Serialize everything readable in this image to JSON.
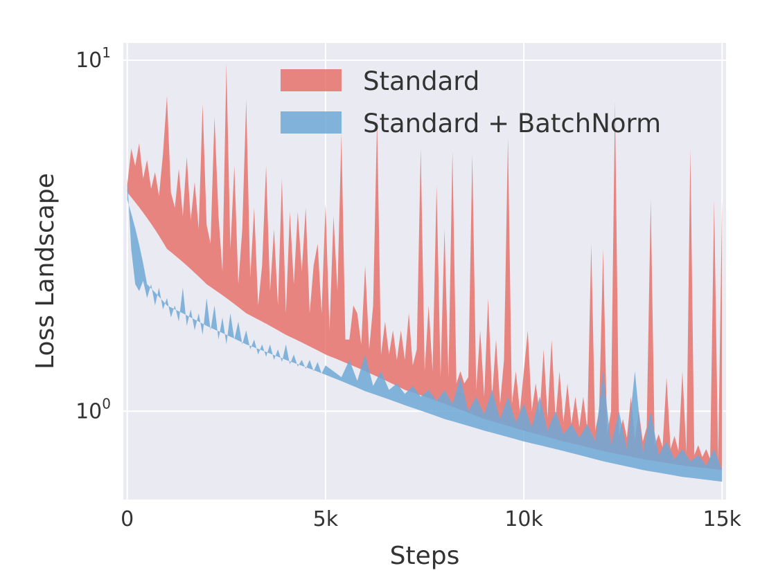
{
  "chart_data": {
    "type": "area",
    "title": "",
    "xlabel": "Steps",
    "ylabel": "Loss Landscape",
    "y_scale": "log",
    "xlim": [
      -100,
      15100
    ],
    "ylim": [
      0.56,
      11.2
    ],
    "x_ticks": [
      {
        "value": 0,
        "label": "0"
      },
      {
        "value": 5000,
        "label": "5k"
      },
      {
        "value": 10000,
        "label": "10k"
      },
      {
        "value": 15000,
        "label": "15k"
      }
    ],
    "y_ticks": [
      {
        "value": 1,
        "base": "10",
        "exp": "0"
      },
      {
        "value": 10,
        "base": "10",
        "exp": "1"
      }
    ],
    "grid": true,
    "legend_position": "top-right",
    "series": [
      {
        "name": "Standard",
        "color": "#e8726b",
        "opacity": 0.85,
        "upper": [
          [
            0,
            4.4
          ],
          [
            100,
            5.6
          ],
          [
            200,
            5.0
          ],
          [
            300,
            5.8
          ],
          [
            400,
            4.6
          ],
          [
            500,
            5.2
          ],
          [
            600,
            4.3
          ],
          [
            700,
            4.8
          ],
          [
            800,
            4.1
          ],
          [
            900,
            5.4
          ],
          [
            1000,
            7.9
          ],
          [
            1100,
            4.2
          ],
          [
            1200,
            3.8
          ],
          [
            1300,
            4.9
          ],
          [
            1400,
            3.6
          ],
          [
            1500,
            5.3
          ],
          [
            1600,
            3.5
          ],
          [
            1700,
            4.5
          ],
          [
            1800,
            3.3
          ],
          [
            1900,
            7.5
          ],
          [
            2000,
            3.4
          ],
          [
            2100,
            3.0
          ],
          [
            2200,
            6.9
          ],
          [
            2300,
            3.6
          ],
          [
            2400,
            2.5
          ],
          [
            2500,
            9.8
          ],
          [
            2600,
            2.9
          ],
          [
            2700,
            5.0
          ],
          [
            2800,
            2.3
          ],
          [
            2900,
            3.3
          ],
          [
            3000,
            7.7
          ],
          [
            3100,
            2.4
          ],
          [
            3200,
            3.8
          ],
          [
            3300,
            2.0
          ],
          [
            3400,
            2.6
          ],
          [
            3500,
            5.0
          ],
          [
            3600,
            2.2
          ],
          [
            3700,
            3.3
          ],
          [
            3800,
            2.0
          ],
          [
            3900,
            4.6
          ],
          [
            4000,
            1.9
          ],
          [
            4100,
            3.7
          ],
          [
            4200,
            2.3
          ],
          [
            4300,
            3.7
          ],
          [
            4400,
            2.5
          ],
          [
            4500,
            3.8
          ],
          [
            4600,
            1.9
          ],
          [
            4700,
            2.6
          ],
          [
            4800,
            3.0
          ],
          [
            4900,
            1.9
          ],
          [
            5000,
            3.9
          ],
          [
            5100,
            1.7
          ],
          [
            5200,
            3.6
          ],
          [
            5300,
            2.2
          ],
          [
            5400,
            6.2
          ],
          [
            5500,
            1.6
          ],
          [
            5600,
            1.6
          ],
          [
            5700,
            2.0
          ],
          [
            5800,
            1.9
          ],
          [
            5900,
            1.55
          ],
          [
            6000,
            2.6
          ],
          [
            6100,
            1.5
          ],
          [
            6200,
            2.0
          ],
          [
            6300,
            6.8
          ],
          [
            6400,
            1.45
          ],
          [
            6500,
            1.8
          ],
          [
            6600,
            1.45
          ],
          [
            6700,
            1.7
          ],
          [
            6800,
            1.4
          ],
          [
            6900,
            1.7
          ],
          [
            7000,
            1.4
          ],
          [
            7100,
            1.9
          ],
          [
            7200,
            1.35
          ],
          [
            7300,
            1.5
          ],
          [
            7400,
            5.6
          ],
          [
            7500,
            1.3
          ],
          [
            7600,
            2.0
          ],
          [
            7700,
            1.3
          ],
          [
            7800,
            4.4
          ],
          [
            7900,
            1.25
          ],
          [
            8000,
            3.3
          ],
          [
            8100,
            1.25
          ],
          [
            8200,
            5.5
          ],
          [
            8300,
            1.2
          ],
          [
            8400,
            1.3
          ],
          [
            8500,
            1.2
          ],
          [
            8600,
            1.25
          ],
          [
            8700,
            5.4
          ],
          [
            8800,
            1.15
          ],
          [
            8900,
            1.7
          ],
          [
            9000,
            1.1
          ],
          [
            9100,
            2.1
          ],
          [
            9200,
            1.1
          ],
          [
            9300,
            1.6
          ],
          [
            9400,
            1.05
          ],
          [
            9500,
            1.4
          ],
          [
            9600,
            6.0
          ],
          [
            9700,
            1.05
          ],
          [
            9800,
            1.3
          ],
          [
            9900,
            1.0
          ],
          [
            10000,
            1.3
          ],
          [
            10100,
            1.7
          ],
          [
            10200,
            1.0
          ],
          [
            10300,
            1.2
          ],
          [
            10400,
            0.98
          ],
          [
            10500,
            1.5
          ],
          [
            10600,
            0.96
          ],
          [
            10700,
            1.6
          ],
          [
            10800,
            0.95
          ],
          [
            10900,
            1.3
          ],
          [
            11000,
            0.93
          ],
          [
            11100,
            1.2
          ],
          [
            11200,
            0.92
          ],
          [
            11300,
            1.1
          ],
          [
            11400,
            0.9
          ],
          [
            11500,
            1.1
          ],
          [
            11600,
            0.89
          ],
          [
            11700,
            3.0
          ],
          [
            11800,
            0.88
          ],
          [
            11900,
            1.0
          ],
          [
            12000,
            2.9
          ],
          [
            12100,
            0.86
          ],
          [
            12200,
            1.0
          ],
          [
            12300,
            7.6
          ],
          [
            12400,
            0.85
          ],
          [
            12500,
            0.95
          ],
          [
            12600,
            0.84
          ],
          [
            12700,
            1.1
          ],
          [
            12800,
            0.83
          ],
          [
            12900,
            1.0
          ],
          [
            13000,
            0.82
          ],
          [
            13100,
            0.9
          ],
          [
            13200,
            4.0
          ],
          [
            13300,
            0.8
          ],
          [
            13400,
            0.86
          ],
          [
            13500,
            0.79
          ],
          [
            13600,
            1.25
          ],
          [
            13700,
            0.78
          ],
          [
            13800,
            0.85
          ],
          [
            13900,
            0.77
          ],
          [
            14000,
            1.3
          ],
          [
            14100,
            0.76
          ],
          [
            14200,
            5.6
          ],
          [
            14300,
            0.75
          ],
          [
            14400,
            0.8
          ],
          [
            14500,
            0.74
          ],
          [
            14600,
            0.78
          ],
          [
            14700,
            0.73
          ],
          [
            14800,
            4.0
          ],
          [
            14900,
            0.72
          ],
          [
            15000,
            4.0
          ]
        ],
        "lower": [
          [
            0,
            4.2
          ],
          [
            1000,
            2.9
          ],
          [
            2000,
            2.3
          ],
          [
            3000,
            1.9
          ],
          [
            4000,
            1.65
          ],
          [
            5000,
            1.45
          ],
          [
            6000,
            1.3
          ],
          [
            7000,
            1.15
          ],
          [
            8000,
            1.05
          ],
          [
            9000,
            0.95
          ],
          [
            10000,
            0.88
          ],
          [
            11000,
            0.82
          ],
          [
            12000,
            0.77
          ],
          [
            13000,
            0.73
          ],
          [
            14000,
            0.7
          ],
          [
            15000,
            0.68
          ]
        ]
      },
      {
        "name": "Standard + BatchNorm",
        "color": "#6fa8d6",
        "opacity": 0.85,
        "upper": [
          [
            0,
            4.6
          ],
          [
            100,
            2.9
          ],
          [
            200,
            2.3
          ],
          [
            300,
            2.2
          ],
          [
            400,
            2.35
          ],
          [
            500,
            2.1
          ],
          [
            600,
            2.3
          ],
          [
            700,
            2.0
          ],
          [
            800,
            2.25
          ],
          [
            900,
            1.95
          ],
          [
            1000,
            2.1
          ],
          [
            1100,
            1.85
          ],
          [
            1200,
            2.0
          ],
          [
            1300,
            1.8
          ],
          [
            1400,
            2.25
          ],
          [
            1500,
            1.75
          ],
          [
            1600,
            1.95
          ],
          [
            1700,
            1.7
          ],
          [
            1800,
            1.9
          ],
          [
            1900,
            1.65
          ],
          [
            2000,
            2.1
          ],
          [
            2100,
            1.7
          ],
          [
            2200,
            2.0
          ],
          [
            2300,
            1.6
          ],
          [
            2400,
            1.85
          ],
          [
            2500,
            1.55
          ],
          [
            2600,
            1.9
          ],
          [
            2700,
            1.6
          ],
          [
            2800,
            1.8
          ],
          [
            2900,
            1.55
          ],
          [
            3000,
            1.7
          ],
          [
            3100,
            1.5
          ],
          [
            3200,
            1.6
          ],
          [
            3300,
            1.45
          ],
          [
            3400,
            1.55
          ],
          [
            3500,
            1.43
          ],
          [
            3600,
            1.55
          ],
          [
            3700,
            1.4
          ],
          [
            3800,
            1.5
          ],
          [
            3900,
            1.38
          ],
          [
            4000,
            1.55
          ],
          [
            4100,
            1.36
          ],
          [
            4200,
            1.45
          ],
          [
            4300,
            1.34
          ],
          [
            4400,
            1.4
          ],
          [
            4500,
            1.32
          ],
          [
            4600,
            1.4
          ],
          [
            4700,
            1.3
          ],
          [
            4800,
            1.38
          ],
          [
            4900,
            1.28
          ],
          [
            5000,
            1.35
          ],
          [
            5200,
            1.3
          ],
          [
            5400,
            1.25
          ],
          [
            5600,
            1.4
          ],
          [
            5800,
            1.22
          ],
          [
            6000,
            1.45
          ],
          [
            6200,
            1.18
          ],
          [
            6400,
            1.3
          ],
          [
            6600,
            1.15
          ],
          [
            6800,
            1.2
          ],
          [
            7000,
            1.12
          ],
          [
            7200,
            1.18
          ],
          [
            7400,
            1.1
          ],
          [
            7600,
            1.15
          ],
          [
            7800,
            1.07
          ],
          [
            8000,
            1.15
          ],
          [
            8200,
            1.05
          ],
          [
            8400,
            1.25
          ],
          [
            8600,
            1.0
          ],
          [
            8800,
            1.1
          ],
          [
            9000,
            0.98
          ],
          [
            9200,
            1.15
          ],
          [
            9400,
            0.95
          ],
          [
            9600,
            1.1
          ],
          [
            9800,
            0.93
          ],
          [
            10000,
            1.05
          ],
          [
            10200,
            0.9
          ],
          [
            10400,
            1.1
          ],
          [
            10600,
            0.88
          ],
          [
            10800,
            1.0
          ],
          [
            11000,
            0.86
          ],
          [
            11200,
            0.92
          ],
          [
            11400,
            0.84
          ],
          [
            11600,
            0.92
          ],
          [
            11800,
            0.82
          ],
          [
            12000,
            1.3
          ],
          [
            12200,
            0.8
          ],
          [
            12400,
            1.0
          ],
          [
            12600,
            0.78
          ],
          [
            12800,
            1.3
          ],
          [
            13000,
            0.76
          ],
          [
            13200,
            1.0
          ],
          [
            13400,
            0.75
          ],
          [
            13600,
            0.82
          ],
          [
            13800,
            0.73
          ],
          [
            14000,
            0.78
          ],
          [
            14200,
            0.72
          ],
          [
            14400,
            0.75
          ],
          [
            14600,
            0.7
          ],
          [
            14800,
            0.78
          ],
          [
            15000,
            0.68
          ]
        ],
        "lower": [
          [
            0,
            4.0
          ],
          [
            500,
            2.3
          ],
          [
            1000,
            2.0
          ],
          [
            2000,
            1.75
          ],
          [
            3000,
            1.55
          ],
          [
            4000,
            1.4
          ],
          [
            5000,
            1.27
          ],
          [
            6000,
            1.14
          ],
          [
            7000,
            1.04
          ],
          [
            8000,
            0.95
          ],
          [
            9000,
            0.88
          ],
          [
            10000,
            0.82
          ],
          [
            11000,
            0.77
          ],
          [
            12000,
            0.72
          ],
          [
            13000,
            0.68
          ],
          [
            14000,
            0.65
          ],
          [
            15000,
            0.63
          ]
        ]
      }
    ]
  }
}
